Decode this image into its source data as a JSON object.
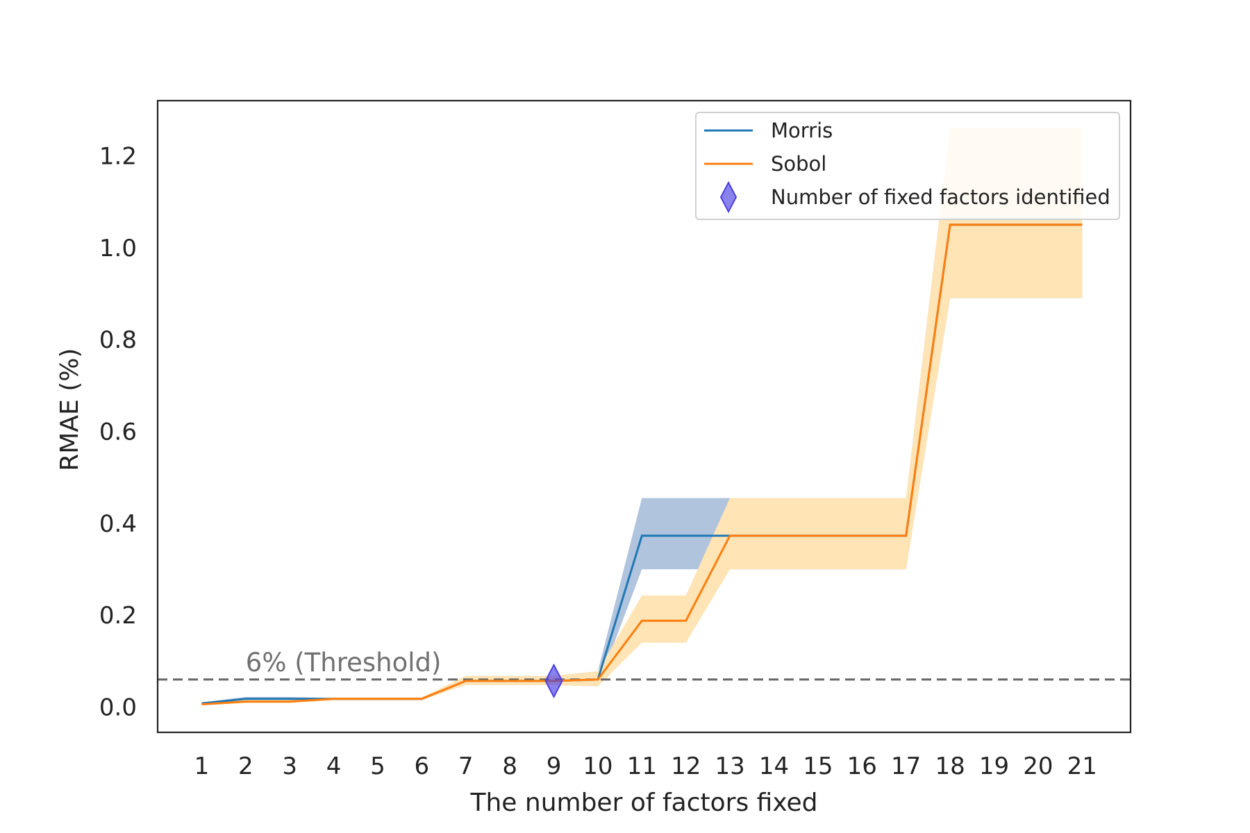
{
  "chart_data": {
    "type": "line",
    "title": "",
    "xlabel": "The number of factors fixed",
    "ylabel": "RMAE (%)",
    "xlim": [
      0,
      22.1
    ],
    "ylim": [
      -0.055,
      1.32
    ],
    "x": [
      1,
      2,
      3,
      4,
      5,
      6,
      7,
      8,
      9,
      10,
      11,
      12,
      13,
      14,
      15,
      16,
      17,
      18,
      19,
      20,
      21
    ],
    "yticks": [
      0.0,
      0.2,
      0.4,
      0.6,
      0.8,
      1.0,
      1.2
    ],
    "ytick_labels": [
      "0.0",
      "0.2",
      "0.4",
      "0.6",
      "0.8",
      "1.0",
      "1.2"
    ],
    "grid": false,
    "legend_position": "top-right",
    "series": [
      {
        "name": "Morris",
        "color": "#1f77b4",
        "band_color": "#b0c4de",
        "values": [
          0.008,
          0.018,
          0.018,
          0.018,
          0.018,
          0.018,
          0.057,
          0.057,
          0.057,
          0.06,
          0.373,
          0.373,
          0.373,
          0.373,
          0.373,
          0.373,
          0.373,
          1.05,
          1.05,
          1.05,
          1.05
        ],
        "lower": [
          0.006,
          0.013,
          0.013,
          0.016,
          0.016,
          0.016,
          0.048,
          0.048,
          0.048,
          0.045,
          0.3,
          0.3,
          0.3,
          0.3,
          0.3,
          0.3,
          0.3,
          0.89,
          0.89,
          0.89,
          0.89
        ],
        "upper": [
          0.01,
          0.022,
          0.022,
          0.02,
          0.02,
          0.02,
          0.068,
          0.068,
          0.068,
          0.078,
          0.455,
          0.455,
          0.455,
          0.455,
          0.455,
          0.455,
          0.455,
          1.26,
          1.26,
          1.26,
          1.26
        ]
      },
      {
        "name": "Sobol",
        "color": "#ff7f0e",
        "band_color": "#ffe4b5",
        "values": [
          0.006,
          0.012,
          0.012,
          0.018,
          0.018,
          0.018,
          0.057,
          0.057,
          0.057,
          0.06,
          0.188,
          0.188,
          0.373,
          0.373,
          0.373,
          0.373,
          0.373,
          1.05,
          1.05,
          1.05,
          1.05
        ],
        "lower": [
          0.004,
          0.009,
          0.009,
          0.015,
          0.015,
          0.015,
          0.048,
          0.048,
          0.048,
          0.045,
          0.14,
          0.14,
          0.3,
          0.3,
          0.3,
          0.3,
          0.3,
          0.89,
          0.89,
          0.89,
          0.89
        ],
        "upper": [
          0.008,
          0.016,
          0.016,
          0.021,
          0.021,
          0.021,
          0.068,
          0.068,
          0.068,
          0.078,
          0.243,
          0.243,
          0.455,
          0.455,
          0.455,
          0.455,
          0.455,
          1.26,
          1.26,
          1.26,
          1.26
        ]
      }
    ],
    "marker": {
      "name": "Number of fixed factors identified",
      "x": 9,
      "y": 0.057,
      "color": "#4b3fe3"
    },
    "threshold": {
      "value": 0.06,
      "label": "6% (Threshold)",
      "color": "#666666"
    }
  }
}
